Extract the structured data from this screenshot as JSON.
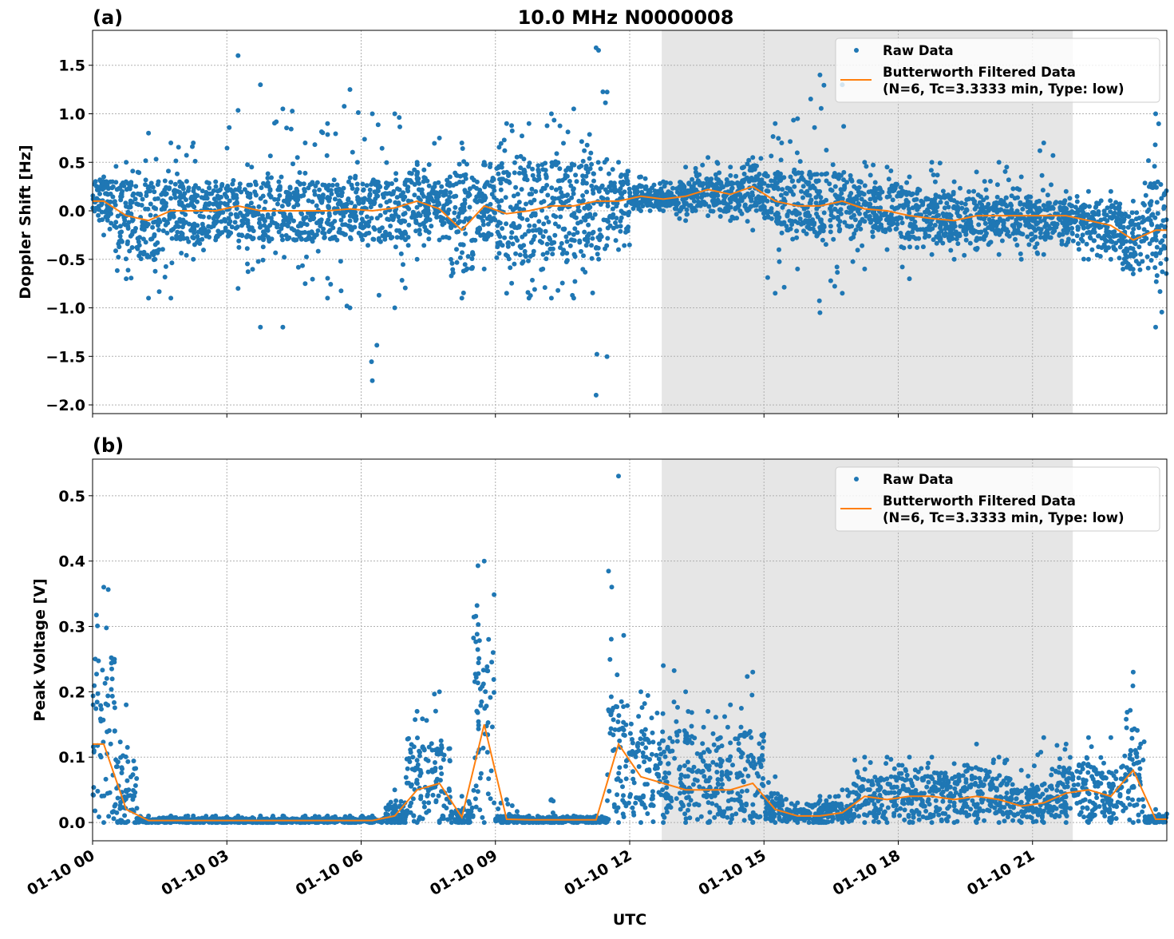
{
  "chart_data": {
    "title": "10.0 MHz N0000008",
    "xlabel": "UTC",
    "date": "01-10",
    "x_tick_labels": [
      "01-10 00",
      "01-10 03",
      "01-10 06",
      "01-10 09",
      "01-10 12",
      "01-10 15",
      "01-10 18",
      "01-10 21"
    ],
    "x_range": [
      "01-10 00:00",
      "01-11 00:00"
    ],
    "shaded_span": [
      "01-10 12:43",
      "01-10 21:54"
    ],
    "shade_color": "#e6e6e6",
    "grid": true,
    "legend_placement": "upper-right",
    "legend": {
      "raw": "Raw Data",
      "filtered_line1": "Butterworth Filtered Data",
      "filtered_line2": "(N=6, Tc=3.3333 min, Type: low)"
    },
    "colors": {
      "raw": "#1f77b4",
      "filtered": "#ff7f0e"
    },
    "bin_times": [
      "00:15",
      "00:45",
      "01:15",
      "01:45",
      "02:15",
      "02:45",
      "03:15",
      "03:45",
      "04:15",
      "04:45",
      "05:15",
      "05:45",
      "06:15",
      "06:45",
      "07:15",
      "07:45",
      "08:15",
      "08:45",
      "09:15",
      "09:45",
      "10:15",
      "10:45",
      "11:15",
      "11:45",
      "12:15",
      "12:45",
      "13:15",
      "13:45",
      "14:15",
      "14:45",
      "15:15",
      "15:45",
      "16:15",
      "16:45",
      "17:15",
      "17:45",
      "18:15",
      "18:45",
      "19:15",
      "19:45",
      "20:15",
      "20:45",
      "21:15",
      "21:45",
      "22:15",
      "22:45",
      "23:15",
      "23:45"
    ],
    "panels": [
      {
        "label": "(a)",
        "type": "scatter+line",
        "ylabel": "Doppler Shift [Hz]",
        "ylim": [
          -2.09,
          1.86
        ],
        "y_ticks": [
          -2.0,
          -1.5,
          -1.0,
          -0.5,
          0.0,
          0.5,
          1.0,
          1.5
        ],
        "y_tick_labels": [
          "−2.0",
          "−1.5",
          "−1.0",
          "−0.5",
          "0.0",
          "0.5",
          "1.0",
          "1.5"
        ],
        "filtered": [
          0.1,
          -0.05,
          -0.1,
          0.0,
          0.0,
          0.0,
          0.05,
          0.0,
          0.0,
          0.0,
          0.0,
          0.02,
          0.0,
          0.03,
          0.1,
          0.02,
          -0.2,
          0.05,
          -0.03,
          0.0,
          0.05,
          0.05,
          0.1,
          0.1,
          0.15,
          0.12,
          0.15,
          0.22,
          0.17,
          0.25,
          0.1,
          0.05,
          0.05,
          0.1,
          0.02,
          0.0,
          -0.05,
          -0.08,
          -0.1,
          -0.05,
          -0.05,
          -0.05,
          -0.05,
          -0.05,
          -0.1,
          -0.15,
          -0.3,
          -0.2
        ],
        "raw_core_low": [
          -0.1,
          -0.4,
          -0.5,
          -0.3,
          -0.3,
          -0.25,
          -0.3,
          -0.3,
          -0.3,
          -0.3,
          -0.3,
          -0.3,
          -0.3,
          -0.3,
          -0.2,
          -0.15,
          -0.6,
          -0.3,
          -0.5,
          -0.5,
          -0.5,
          -0.5,
          -0.5,
          -0.2,
          0.05,
          0.05,
          0.0,
          0.05,
          0.0,
          0.0,
          -0.15,
          -0.2,
          -0.25,
          -0.2,
          -0.2,
          -0.2,
          -0.3,
          -0.3,
          -0.3,
          -0.3,
          -0.25,
          -0.25,
          -0.3,
          -0.25,
          -0.35,
          -0.4,
          -0.55,
          -0.6
        ],
        "raw_core_high": [
          0.3,
          0.3,
          0.3,
          0.3,
          0.3,
          0.25,
          0.3,
          0.3,
          0.3,
          0.3,
          0.3,
          0.3,
          0.3,
          0.3,
          0.4,
          0.3,
          0.4,
          0.3,
          0.5,
          0.5,
          0.5,
          0.5,
          0.6,
          0.4,
          0.25,
          0.22,
          0.3,
          0.35,
          0.3,
          0.45,
          0.4,
          0.4,
          0.4,
          0.4,
          0.3,
          0.25,
          0.2,
          0.15,
          0.15,
          0.15,
          0.15,
          0.15,
          0.1,
          0.1,
          0.05,
          0.05,
          -0.05,
          0.3
        ],
        "raw_min": [
          -0.25,
          -0.7,
          -0.9,
          -0.9,
          -0.5,
          -0.3,
          -0.8,
          -1.2,
          -1.2,
          -0.75,
          -0.9,
          -1.0,
          -1.75,
          -1.0,
          -0.5,
          -0.3,
          -0.9,
          -0.6,
          -0.85,
          -0.9,
          -0.9,
          -0.9,
          -1.9,
          -0.4,
          0.0,
          0.0,
          -0.1,
          -0.05,
          -0.1,
          -0.2,
          -0.85,
          -0.6,
          -1.05,
          -0.85,
          -0.6,
          -0.4,
          -0.7,
          -0.45,
          -0.5,
          -0.4,
          -0.45,
          -0.5,
          -0.45,
          -0.35,
          -0.5,
          -0.5,
          -0.65,
          -1.2
        ],
        "raw_max": [
          0.35,
          0.5,
          0.8,
          0.7,
          0.7,
          0.3,
          1.6,
          1.3,
          1.05,
          0.7,
          0.9,
          1.25,
          1.0,
          1.0,
          0.5,
          0.75,
          0.7,
          0.5,
          0.9,
          0.9,
          1.0,
          1.05,
          1.68,
          0.5,
          0.35,
          0.3,
          0.45,
          0.55,
          0.45,
          0.55,
          0.9,
          0.95,
          1.4,
          1.3,
          0.5,
          0.45,
          0.35,
          0.5,
          0.3,
          0.4,
          0.5,
          0.35,
          0.7,
          0.2,
          0.2,
          0.2,
          0.1,
          1.0
        ]
      },
      {
        "label": "(b)",
        "type": "scatter+line",
        "ylabel": "Peak Voltage [V]",
        "ylim": [
          -0.028,
          0.556
        ],
        "y_ticks": [
          0.0,
          0.1,
          0.2,
          0.3,
          0.4,
          0.5
        ],
        "y_tick_labels": [
          "0.0",
          "0.1",
          "0.2",
          "0.3",
          "0.4",
          "0.5"
        ],
        "filtered": [
          0.12,
          0.02,
          0.003,
          0.003,
          0.003,
          0.003,
          0.003,
          0.003,
          0.003,
          0.003,
          0.003,
          0.003,
          0.003,
          0.01,
          0.05,
          0.06,
          0.008,
          0.15,
          0.005,
          0.004,
          0.004,
          0.004,
          0.004,
          0.12,
          0.07,
          0.06,
          0.05,
          0.05,
          0.05,
          0.06,
          0.02,
          0.01,
          0.01,
          0.015,
          0.04,
          0.035,
          0.04,
          0.04,
          0.035,
          0.04,
          0.035,
          0.025,
          0.03,
          0.045,
          0.05,
          0.04,
          0.08,
          0.005
        ],
        "raw_core_low": [
          0.01,
          0.0,
          0.0,
          0.0,
          0.0,
          0.0,
          0.0,
          0.0,
          0.0,
          0.0,
          0.0,
          0.0,
          0.0,
          0.0,
          0.01,
          0.01,
          0.0,
          0.03,
          0.0,
          0.0,
          0.0,
          0.0,
          0.0,
          0.02,
          0.02,
          0.02,
          0.02,
          0.01,
          0.01,
          0.01,
          0.005,
          0.005,
          0.0,
          0.005,
          0.01,
          0.01,
          0.01,
          0.01,
          0.01,
          0.01,
          0.01,
          0.01,
          0.01,
          0.01,
          0.01,
          0.01,
          0.02,
          0.0
        ],
        "raw_core_high": [
          0.25,
          0.1,
          0.006,
          0.006,
          0.006,
          0.006,
          0.006,
          0.006,
          0.006,
          0.006,
          0.006,
          0.006,
          0.006,
          0.03,
          0.12,
          0.12,
          0.02,
          0.3,
          0.01,
          0.008,
          0.008,
          0.008,
          0.008,
          0.2,
          0.14,
          0.13,
          0.14,
          0.12,
          0.13,
          0.14,
          0.04,
          0.02,
          0.03,
          0.03,
          0.07,
          0.07,
          0.08,
          0.08,
          0.07,
          0.08,
          0.07,
          0.05,
          0.06,
          0.08,
          0.09,
          0.08,
          0.15,
          0.01
        ],
        "raw_min": [
          0.0,
          0.0,
          0.0,
          0.0,
          0.0,
          0.0,
          0.0,
          0.0,
          0.0,
          0.0,
          0.0,
          0.0,
          0.0,
          0.0,
          0.0,
          0.0,
          0.0,
          0.0,
          0.0,
          0.0,
          0.0,
          0.0,
          0.0,
          0.0,
          0.0,
          0.0,
          0.0,
          0.0,
          0.0,
          0.0,
          0.0,
          0.0,
          0.0,
          0.0,
          0.0,
          0.0,
          0.0,
          0.0,
          0.0,
          0.0,
          0.0,
          0.0,
          0.0,
          0.0,
          0.0,
          0.0,
          0.0,
          0.0
        ],
        "raw_max": [
          0.36,
          0.18,
          0.01,
          0.01,
          0.01,
          0.01,
          0.01,
          0.01,
          0.01,
          0.01,
          0.01,
          0.01,
          0.01,
          0.05,
          0.17,
          0.2,
          0.04,
          0.4,
          0.035,
          0.01,
          0.035,
          0.01,
          0.01,
          0.53,
          0.2,
          0.24,
          0.2,
          0.17,
          0.18,
          0.23,
          0.07,
          0.03,
          0.04,
          0.05,
          0.1,
          0.1,
          0.1,
          0.1,
          0.09,
          0.12,
          0.1,
          0.08,
          0.13,
          0.12,
          0.13,
          0.13,
          0.23,
          0.02
        ]
      }
    ]
  }
}
